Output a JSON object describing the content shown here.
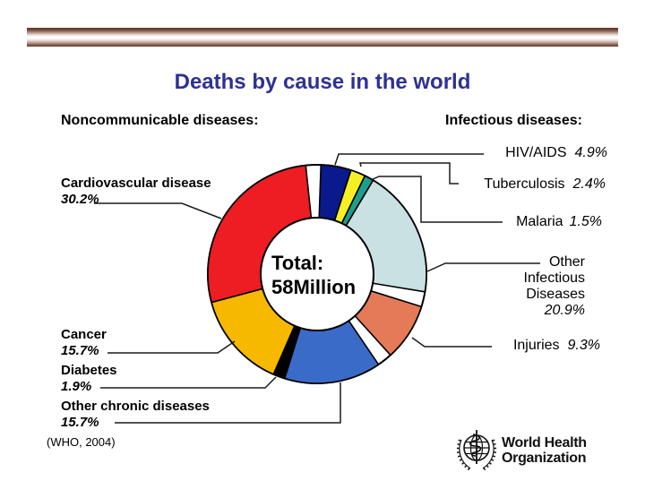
{
  "slide": {
    "title": "Deaths by cause in the world",
    "title_color": "#2E3192",
    "left_heading": "Noncommunicable diseases:",
    "right_heading": "Infectious diseases:",
    "source": "(WHO, 2004)",
    "logo": {
      "line1": "World Health",
      "line2": "Organization"
    }
  },
  "chart_data": {
    "type": "pie",
    "subtype": "donut",
    "title": "Deaths by cause in the world",
    "center_label": [
      "Total:",
      "58Million"
    ],
    "total_deaths": "58 Million",
    "unit": "%",
    "legend_position": "callout-labels",
    "start_angle_deg": 2,
    "gap_degrees": 8,
    "segments": [
      {
        "label": "HIV/AIDS",
        "value": 4.9,
        "color": "#0A1A8C",
        "group": "infectious"
      },
      {
        "label": "Tuberculosis",
        "value": 2.4,
        "color": "#F6EF25",
        "group": "infectious"
      },
      {
        "label": "Malaria",
        "value": 1.5,
        "color": "#1C9E8F",
        "group": "infectious"
      },
      {
        "label": "Other Infectious Diseases",
        "value": 20.9,
        "color": "#C9E1E3",
        "group": "infectious",
        "gap_after": true
      },
      {
        "label": "Injuries",
        "value": 9.3,
        "color": "#E57A58",
        "group": "injuries",
        "gap_after": true
      },
      {
        "label": "Other chronic diseases",
        "value": 15.7,
        "color": "#3B6BC9",
        "group": "noncommunicable"
      },
      {
        "label": "Diabetes",
        "value": 1.9,
        "color": "#000000",
        "group": "noncommunicable"
      },
      {
        "label": "Cancer",
        "value": 15.7,
        "color": "#F6B900",
        "group": "noncommunicable"
      },
      {
        "label": "Cardiovascular disease",
        "value": 30.2,
        "color": "#EE1C23",
        "group": "noncommunicable",
        "gap_after": true
      }
    ]
  },
  "callouts": {
    "left": {
      "cardiovascular": {
        "name": "Cardiovascular disease",
        "pct": "30.2%"
      },
      "cancer": {
        "name": "Cancer",
        "pct": "15.7%"
      },
      "diabetes": {
        "name": "Diabetes",
        "pct": "1.9%"
      },
      "other_chronic": {
        "name": "Other chronic diseases",
        "pct": "15.7%"
      }
    },
    "right": {
      "hiv_aids": {
        "name": "HIV/AIDS",
        "pct": "4.9%"
      },
      "tuberculosis": {
        "name": "Tuberculosis",
        "pct": "2.4%"
      },
      "malaria": {
        "name": "Malaria",
        "pct": "1.5%"
      },
      "other_infectious": {
        "line1": "Other",
        "line2": "Infectious",
        "line3": "Diseases",
        "pct": "20.9%"
      },
      "injuries": {
        "name": "Injuries",
        "pct": "9.3%"
      }
    }
  }
}
